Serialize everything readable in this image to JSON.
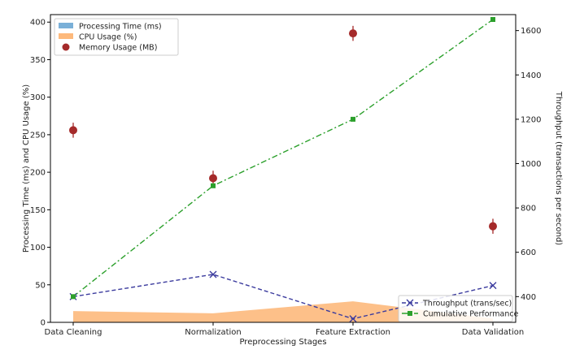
{
  "chart_data": {
    "type": "line",
    "title": "",
    "xlabel": "Preprocessing Stages",
    "ylabel_left": "Processing Time (ms) and CPU Usage (%)",
    "ylabel_right": "Throughput (transactions per second)",
    "categories": [
      "Data Cleaning",
      "Normalization",
      "Feature Extraction",
      "Data Validation"
    ],
    "ylim_left": [
      0,
      410
    ],
    "yticks_left": [
      0,
      50,
      100,
      150,
      200,
      250,
      300,
      350,
      400
    ],
    "ylim_right": [
      284,
      1672
    ],
    "yticks_right": [
      400,
      600,
      800,
      1000,
      1200,
      1400,
      1600
    ],
    "grid": false,
    "series": [
      {
        "name": "Processing Time (ms)",
        "type": "area",
        "axis": "left",
        "color": "#7ab0d8",
        "values": [
          0,
          0,
          0,
          0
        ]
      },
      {
        "name": "CPU Usage (%)",
        "type": "area",
        "axis": "left",
        "color": "#fdb97c",
        "values": [
          15,
          12,
          28,
          5
        ]
      },
      {
        "name": "Memory Usage (MB)",
        "type": "scatter",
        "axis": "left",
        "color": "#a52a2a",
        "values": [
          256,
          192,
          385,
          128
        ],
        "error": [
          10,
          10,
          10,
          10
        ]
      },
      {
        "name": "Throughput (trans/sec)",
        "type": "line",
        "axis": "right",
        "color": "#3b3b9e",
        "marker": "x",
        "values": [
          400,
          500,
          300,
          450
        ]
      },
      {
        "name": "Cumulative Performance",
        "type": "line",
        "axis": "right",
        "color": "#2ca02c",
        "marker": "square",
        "values": [
          400,
          900,
          1200,
          1650
        ]
      }
    ],
    "legend_left_placement": "top-left",
    "legend_right_placement": "bottom-right"
  }
}
